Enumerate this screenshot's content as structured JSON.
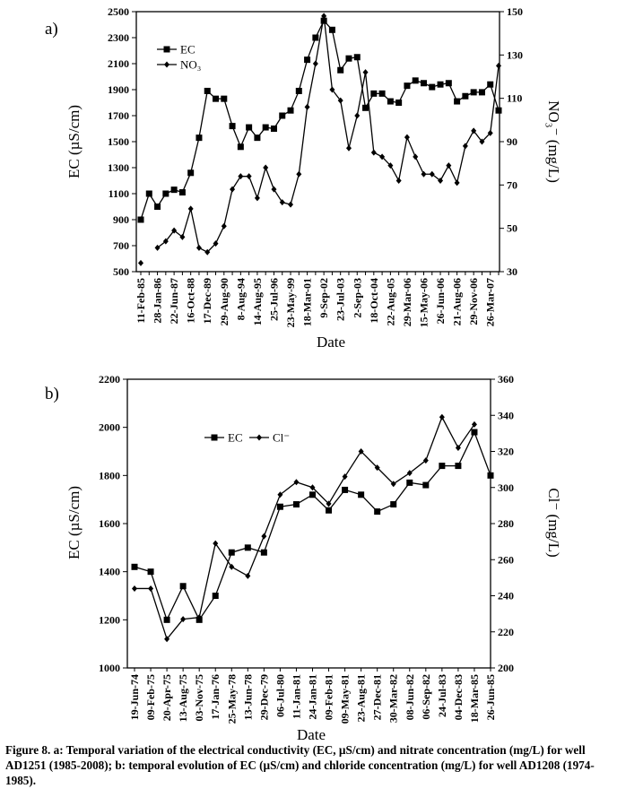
{
  "chart_data": [
    {
      "type": "line",
      "panel_label": "a)",
      "x_label": "Date",
      "y_label": "EC  (µS/cm)",
      "y2_label": "NO₃⁻ (mg/L)",
      "categories": [
        "11-Feb-85",
        null,
        "28-Jan-86",
        null,
        "22-Jun-87",
        null,
        "16-Oct-88",
        null,
        "17-Dec-89",
        null,
        "29-Aug-90",
        null,
        "8-Aug-94",
        null,
        "14-Aug-95",
        null,
        "25-Jul-96",
        null,
        "23-May-99",
        null,
        "18-Mar-01",
        null,
        "9-Sep-02",
        null,
        "23-Jul-03",
        null,
        "2-Sep-03",
        null,
        "18-Oct-04",
        null,
        "22-Aug-05",
        null,
        "29-Mar-06",
        null,
        "15-May-06",
        null,
        "26-Jun-06",
        null,
        "21-Aug-06",
        null,
        "29-Nov-06",
        null,
        "26-Mar-07",
        null
      ],
      "series": [
        {
          "name": "EC",
          "color": "#000000",
          "marker": "square",
          "values": [
            900,
            1100,
            1000,
            1100,
            1130,
            1110,
            1260,
            1530,
            1890,
            1830,
            1830,
            1620,
            1460,
            1610,
            1530,
            1610,
            1600,
            1700,
            1740,
            1890,
            2130,
            2300,
            2430,
            2360,
            2050,
            2140,
            2150,
            1760,
            1870,
            1870,
            1810,
            1800,
            1930,
            1970,
            1950,
            1920,
            1940,
            1950,
            1810,
            1850,
            1880,
            1880,
            1940,
            1740
          ]
        },
        {
          "name": "NO₃",
          "color": "#000000",
          "marker": "diamond",
          "axis": "y2",
          "values": [
            34,
            null,
            41,
            44,
            49,
            46,
            59,
            41,
            39,
            43,
            51,
            68,
            74,
            74,
            64,
            78,
            68,
            62,
            61,
            75,
            106,
            126,
            148,
            114,
            109,
            87,
            102,
            122,
            85,
            83,
            79,
            72,
            92,
            83,
            75,
            75,
            72,
            79,
            71,
            88,
            95,
            90,
            94,
            125
          ]
        }
      ],
      "ylim": [
        500,
        2500
      ],
      "yticks": [
        500,
        700,
        900,
        1100,
        1300,
        1500,
        1700,
        1900,
        2100,
        2300,
        2500
      ],
      "y2lim": [
        30,
        150
      ],
      "y2ticks": [
        30,
        50,
        70,
        90,
        110,
        130,
        150
      ],
      "legend": "upper-left"
    },
    {
      "type": "line",
      "panel_label": "b)",
      "x_label": "Date",
      "y_label": "EC  (µS/cm)",
      "y2_label": "Cl⁻  (mg/L)",
      "categories": [
        "19-Jun-74",
        "09-Feb-75",
        "20-Apr-75",
        "13-Aug-75",
        "03-Nov-75",
        "17-Jan-76",
        "25-May-78",
        "13-Jun-78",
        "29-Dec-79",
        "06-Jul-80",
        "11-Jan-81",
        "24-Jan-81",
        "09-Feb-81",
        "09-May-81",
        "23-Aug-81",
        "27-Dec-81",
        "30-Mar-82",
        "08-Jun-82",
        "06-Sep-82",
        "24-Jul-83",
        "04-Dec-83",
        "18-Mar-85",
        "26-Jun-85"
      ],
      "series": [
        {
          "name": "EC",
          "color": "#000000",
          "marker": "square",
          "values": [
            1420,
            1400,
            1200,
            1340,
            1200,
            1300,
            1480,
            1500,
            1480,
            1670,
            1680,
            1720,
            1655,
            1740,
            1720,
            1650,
            1680,
            1770,
            1760,
            1840,
            1840,
            1980,
            1800
          ]
        },
        {
          "name": "Cl⁻",
          "color": "#000000",
          "marker": "diamond",
          "axis": "y2",
          "values": [
            244,
            244,
            216,
            227,
            228,
            269,
            256,
            251,
            273,
            296,
            303,
            300,
            291,
            306,
            320,
            311,
            302,
            308,
            315,
            339,
            322,
            335,
            null
          ]
        }
      ],
      "ylim": [
        1000,
        2200
      ],
      "yticks": [
        1000,
        1200,
        1400,
        1600,
        1800,
        2000,
        2200
      ],
      "y2lim": [
        200,
        360
      ],
      "y2ticks": [
        200,
        220,
        240,
        260,
        280,
        300,
        320,
        340,
        360
      ],
      "legend": "upper-left-row"
    }
  ],
  "caption": "Figure 8. a: Temporal variation of the electrical conductivity (EC, µS/cm) and nitrate concentration (mg/L) for well AD1251 (1985-2008); b: temporal evolution of EC (µS/cm) and chloride concentration (mg/L) for well AD1208 (1974-1985)."
}
